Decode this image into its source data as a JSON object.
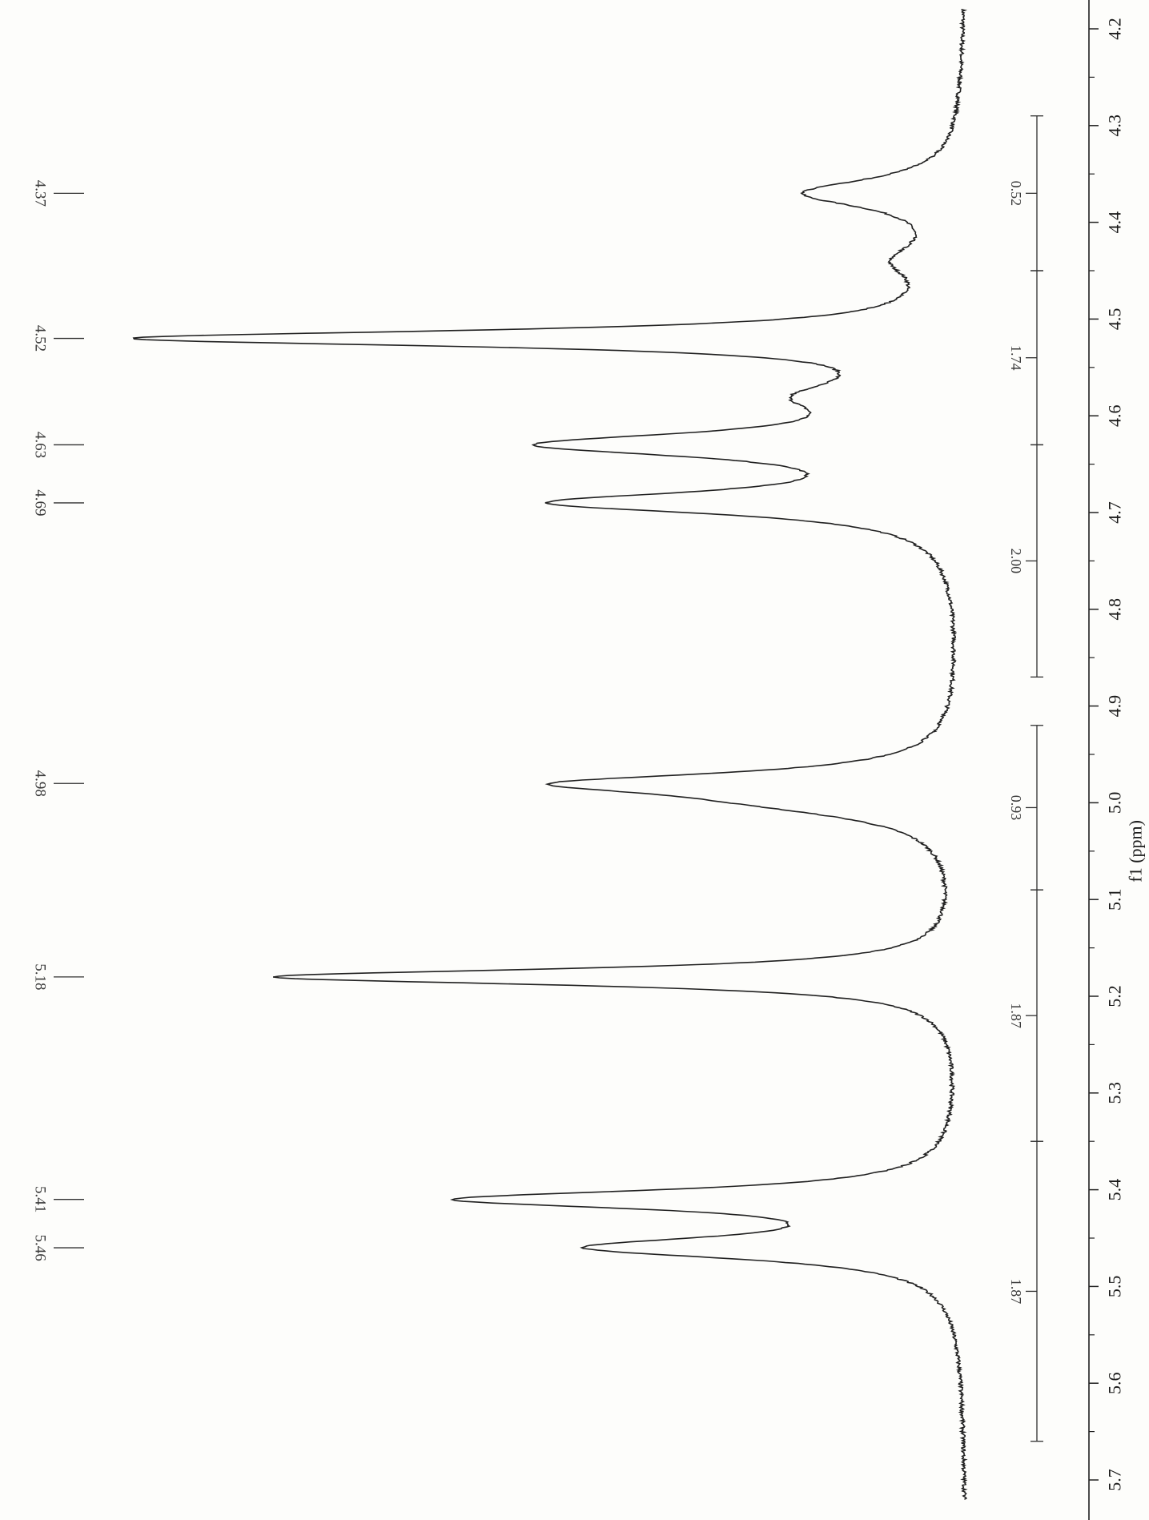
{
  "chart_data": {
    "type": "line",
    "title": "",
    "xlabel": "f1 (ppm)",
    "ylabel": "",
    "xlim": [
      4.2,
      5.7
    ],
    "orientation": "rotated-90",
    "grid": false,
    "legend": "none",
    "x_ticks": [
      "4.2",
      "4.3",
      "4.4",
      "4.5",
      "4.6",
      "4.7",
      "4.8",
      "4.9",
      "5.0",
      "5.1",
      "5.2",
      "5.3",
      "5.4",
      "5.5",
      "5.6",
      "5.7"
    ],
    "peak_labels": [
      {
        "ppm": 4.37,
        "text": "4.37"
      },
      {
        "ppm": 4.52,
        "text": "4.52"
      },
      {
        "ppm": 4.63,
        "text": "4.63"
      },
      {
        "ppm": 4.69,
        "text": "4.69"
      },
      {
        "ppm": 4.98,
        "text": "4.98"
      },
      {
        "ppm": 5.18,
        "text": "5.18"
      },
      {
        "ppm": 5.41,
        "text": "5.41"
      },
      {
        "ppm": 5.46,
        "text": "5.46"
      }
    ],
    "integrals": [
      {
        "from": 4.29,
        "to": 4.45,
        "text": "0.52"
      },
      {
        "from": 4.45,
        "to": 4.63,
        "text": "1.74"
      },
      {
        "from": 4.63,
        "to": 4.87,
        "text": "2.00"
      },
      {
        "from": 4.92,
        "to": 5.09,
        "text": "0.93"
      },
      {
        "from": 5.09,
        "to": 5.35,
        "text": "1.87"
      },
      {
        "from": 5.35,
        "to": 5.66,
        "text": "1.87"
      }
    ],
    "spectrum": {
      "baseline": 0.04,
      "peaks": [
        {
          "ppm": 4.37,
          "height": 0.19,
          "width": 0.018
        },
        {
          "ppm": 4.44,
          "height": 0.06,
          "width": 0.02
        },
        {
          "ppm": 4.52,
          "height": 1.0,
          "width": 0.01
        },
        {
          "ppm": 4.58,
          "height": 0.14,
          "width": 0.02
        },
        {
          "ppm": 4.63,
          "height": 0.48,
          "width": 0.015
        },
        {
          "ppm": 4.69,
          "height": 0.48,
          "width": 0.014
        },
        {
          "ppm": 4.98,
          "height": 0.43,
          "width": 0.013
        },
        {
          "ppm": 5.0,
          "height": 0.16,
          "width": 0.02
        },
        {
          "ppm": 5.18,
          "height": 0.85,
          "width": 0.01
        },
        {
          "ppm": 5.41,
          "height": 0.6,
          "width": 0.012
        },
        {
          "ppm": 5.46,
          "height": 0.44,
          "width": 0.014
        }
      ]
    }
  }
}
